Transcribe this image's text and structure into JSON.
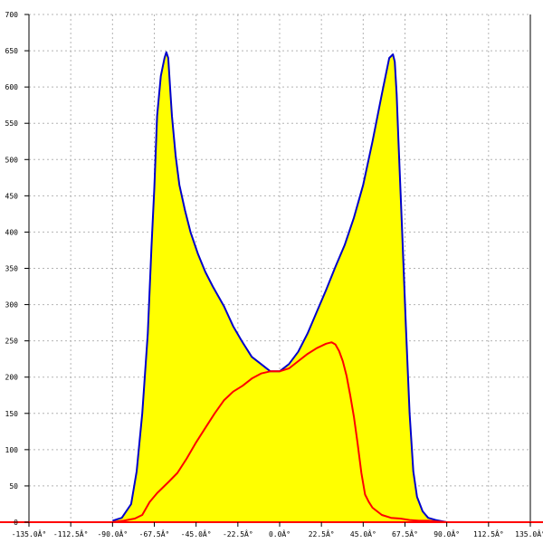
{
  "chart_data": {
    "type": "area",
    "title": "",
    "xlabel": "",
    "ylabel": "",
    "xlim": [
      -135,
      135
    ],
    "ylim": [
      0,
      700
    ],
    "grid": true,
    "x_tick_values": [
      -135,
      -112.5,
      -90,
      -67.5,
      -45,
      -22.5,
      0,
      22.5,
      45,
      67.5,
      90,
      112.5,
      135
    ],
    "x_tick_labels": [
      "-135.0Â°",
      "-112.5Â°",
      "-90.0Â°",
      "-67.5Â°",
      "-45.0Â°",
      "-22.5Â°",
      "0.0Â°",
      "22.5Â°",
      "45.0Â°",
      "67.5Â°",
      "90.0Â°",
      "112.5Â°",
      "135.0Â°"
    ],
    "y_tick_values": [
      0,
      50,
      100,
      150,
      200,
      250,
      300,
      350,
      400,
      450,
      500,
      550,
      600,
      650,
      700
    ],
    "y_tick_labels": [
      "0",
      "50",
      "100",
      "150",
      "200",
      "250",
      "300",
      "350",
      "400",
      "450",
      "500",
      "550",
      "600",
      "650",
      "700"
    ],
    "series": [
      {
        "style": "filled-area",
        "fill_color": "#ffff00",
        "line_color": "#0000cc",
        "x": [
          -90,
          -85,
          -80,
          -77,
          -74,
          -71,
          -69,
          -67.5,
          -66,
          -64,
          -62,
          -61,
          -60,
          -59,
          -58,
          -56,
          -54,
          -51,
          -48,
          -44,
          -40,
          -36,
          -30,
          -25,
          -20,
          -15,
          -10,
          -5,
          0,
          5,
          10,
          15,
          20,
          25,
          30,
          35,
          40,
          45,
          50,
          55,
          57,
          59,
          61,
          62,
          63,
          64,
          66,
          68,
          70,
          72,
          74,
          77,
          80,
          84,
          88,
          90
        ],
        "y": [
          2,
          6,
          25,
          70,
          150,
          260,
          380,
          460,
          560,
          615,
          640,
          648,
          640,
          600,
          560,
          505,
          465,
          430,
          400,
          370,
          345,
          325,
          298,
          270,
          248,
          228,
          218,
          208,
          208,
          218,
          235,
          260,
          290,
          320,
          352,
          382,
          420,
          465,
          525,
          590,
          615,
          640,
          645,
          635,
          590,
          525,
          400,
          270,
          150,
          70,
          35,
          15,
          6,
          3,
          1,
          0
        ]
      },
      {
        "style": "line",
        "line_color": "#ff0000",
        "x": [
          -90,
          -84,
          -78,
          -74,
          -70,
          -66,
          -60,
          -55,
          -50,
          -45,
          -40,
          -35,
          -30,
          -25,
          -20,
          -15,
          -10,
          -5,
          0,
          5,
          10,
          15,
          20,
          25,
          28,
          30,
          32,
          34,
          36,
          38,
          40,
          42,
          44,
          46,
          48,
          50,
          55,
          60,
          65,
          70,
          75,
          80,
          85,
          90
        ],
        "y": [
          0,
          2,
          5,
          10,
          28,
          40,
          55,
          68,
          88,
          110,
          130,
          150,
          168,
          180,
          188,
          198,
          205,
          208,
          208,
          212,
          222,
          232,
          240,
          246,
          248,
          245,
          236,
          222,
          202,
          175,
          145,
          108,
          68,
          38,
          28,
          20,
          10,
          6,
          5,
          3,
          2,
          2,
          1,
          0
        ]
      }
    ]
  }
}
